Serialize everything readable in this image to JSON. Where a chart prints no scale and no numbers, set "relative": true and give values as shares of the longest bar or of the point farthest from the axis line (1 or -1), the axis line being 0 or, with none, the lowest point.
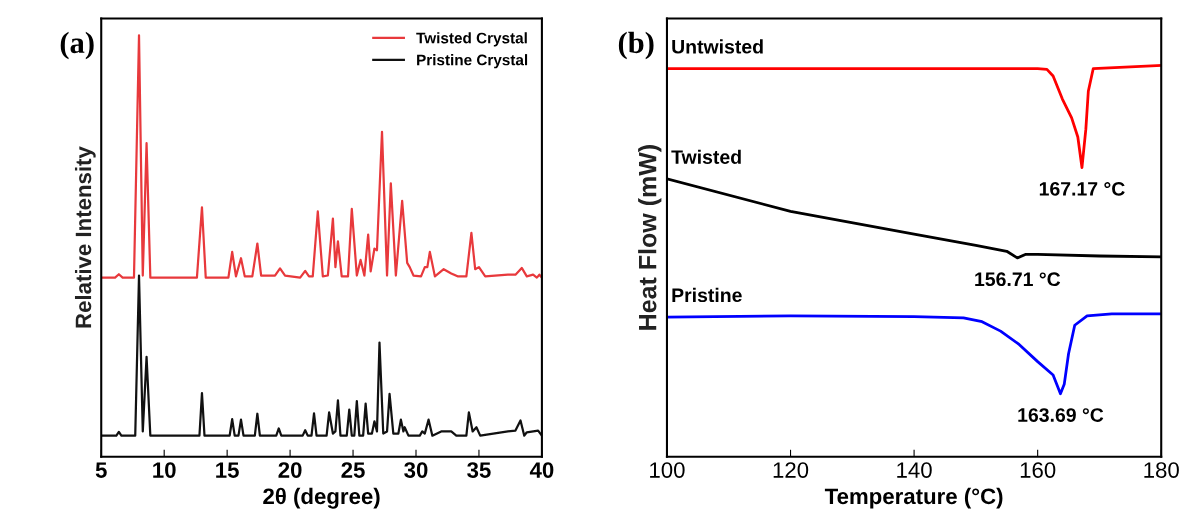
{
  "chart_data": [
    {
      "type": "line",
      "title": "(a)",
      "xlabel": "2θ (degree)",
      "ylabel": "Relative Intensity",
      "relative": true,
      "xlim": [
        5,
        40
      ],
      "xticks": [
        5,
        10,
        15,
        20,
        25,
        30,
        35,
        40
      ],
      "tick_labels": "x",
      "legend": "top right",
      "grid": false,
      "series": [
        {
          "name": "Twisted Crystal",
          "color": "#e8393c",
          "x": [
            5.0,
            6.1,
            6.4,
            6.7,
            7.6,
            8.0,
            8.3,
            8.6,
            8.9,
            12.6,
            13.0,
            13.3,
            15.1,
            15.4,
            15.7,
            16.1,
            16.4,
            17.0,
            17.4,
            17.7,
            18.8,
            19.2,
            19.6,
            20.8,
            21.2,
            21.5,
            21.8,
            22.2,
            22.6,
            23.0,
            23.4,
            23.6,
            23.8,
            24.1,
            24.6,
            24.9,
            25.3,
            25.6,
            25.9,
            26.2,
            26.4,
            26.7,
            26.9,
            27.3,
            27.7,
            28.0,
            28.4,
            28.9,
            29.3,
            29.5,
            29.8,
            30.4,
            30.7,
            30.9,
            31.1,
            31.5,
            32.2,
            32.8,
            33.3,
            34.0,
            34.4,
            34.7,
            35.0,
            35.5,
            37.3,
            37.9,
            38.4,
            38.8,
            39.3,
            39.6,
            39.8,
            40.0
          ],
          "values": [
            0.425,
            0.425,
            0.433,
            0.425,
            0.425,
            1.0,
            0.43,
            0.744,
            0.425,
            0.425,
            0.592,
            0.425,
            0.425,
            0.486,
            0.428,
            0.471,
            0.428,
            0.428,
            0.506,
            0.43,
            0.43,
            0.447,
            0.43,
            0.425,
            0.441,
            0.428,
            0.428,
            0.582,
            0.428,
            0.43,
            0.565,
            0.45,
            0.511,
            0.428,
            0.428,
            0.588,
            0.43,
            0.467,
            0.43,
            0.527,
            0.44,
            0.494,
            0.49,
            0.771,
            0.43,
            0.649,
            0.43,
            0.607,
            0.46,
            0.45,
            0.43,
            0.428,
            0.45,
            0.45,
            0.486,
            0.428,
            0.445,
            0.435,
            0.428,
            0.428,
            0.531,
            0.445,
            0.45,
            0.428,
            0.432,
            0.432,
            0.448,
            0.428,
            0.432,
            0.425,
            0.432,
            0.425
          ]
        },
        {
          "name": "Pristine Crystal",
          "color": "#111111",
          "x": [
            5.0,
            6.2,
            6.4,
            6.6,
            7.7,
            8.0,
            8.3,
            8.6,
            8.9,
            12.8,
            13.0,
            13.2,
            15.2,
            15.4,
            15.6,
            15.9,
            16.1,
            16.3,
            17.2,
            17.4,
            17.6,
            18.9,
            19.1,
            19.3,
            21.0,
            21.2,
            21.4,
            21.7,
            21.9,
            22.1,
            22.9,
            23.1,
            23.4,
            23.6,
            23.8,
            24.0,
            24.5,
            24.7,
            24.9,
            25.1,
            25.3,
            25.5,
            25.8,
            26.0,
            26.2,
            26.5,
            26.7,
            26.9,
            27.1,
            27.4,
            27.7,
            27.9,
            28.2,
            28.6,
            28.8,
            29.0,
            29.1,
            29.4,
            30.3,
            30.5,
            30.7,
            31.0,
            31.3,
            32.0,
            32.8,
            33.2,
            34.0,
            34.2,
            34.5,
            34.8,
            35.1,
            37.3,
            37.9,
            38.3,
            38.6,
            38.8,
            39.7,
            40.0
          ],
          "values": [
            0.05,
            0.05,
            0.059,
            0.05,
            0.05,
            0.43,
            0.06,
            0.237,
            0.05,
            0.05,
            0.151,
            0.05,
            0.05,
            0.089,
            0.05,
            0.05,
            0.088,
            0.05,
            0.05,
            0.102,
            0.05,
            0.05,
            0.067,
            0.05,
            0.05,
            0.063,
            0.05,
            0.05,
            0.103,
            0.05,
            0.05,
            0.105,
            0.055,
            0.06,
            0.134,
            0.05,
            0.05,
            0.112,
            0.05,
            0.05,
            0.132,
            0.05,
            0.05,
            0.126,
            0.055,
            0.055,
            0.084,
            0.06,
            0.271,
            0.055,
            0.06,
            0.149,
            0.055,
            0.055,
            0.088,
            0.06,
            0.07,
            0.05,
            0.05,
            0.06,
            0.055,
            0.088,
            0.05,
            0.06,
            0.06,
            0.05,
            0.05,
            0.105,
            0.06,
            0.07,
            0.05,
            0.06,
            0.062,
            0.086,
            0.05,
            0.058,
            0.062,
            0.05
          ]
        }
      ]
    },
    {
      "type": "line",
      "title": "(b)",
      "xlabel": "Temperature (°C)",
      "ylabel": "Heat Flow (mW)",
      "relative": true,
      "xlim": [
        100,
        180
      ],
      "xticks": [
        100,
        120,
        140,
        160,
        180
      ],
      "tick_labels": "x",
      "legend": false,
      "grid": false,
      "series": [
        {
          "name": "Untwisted",
          "color": "#ff0000",
          "x": [
            100,
            140,
            160,
            161.5,
            162.5,
            164,
            165.5,
            166.5,
            167.17,
            167.8,
            168.2,
            169,
            180
          ],
          "values": [
            0.992,
            0.992,
            0.992,
            0.99,
            0.973,
            0.914,
            0.866,
            0.817,
            0.739,
            0.837,
            0.934,
            0.992,
            1.0
          ]
        },
        {
          "name": "Twisted",
          "color": "#000000",
          "x": [
            100,
            120,
            140,
            150,
            155,
            156.71,
            158,
            160,
            170,
            180
          ],
          "values": [
            0.71,
            0.627,
            0.569,
            0.54,
            0.525,
            0.508,
            0.517,
            0.517,
            0.513,
            0.511
          ]
        },
        {
          "name": "Pristine",
          "color": "#0000ff",
          "x": [
            100,
            120,
            140,
            148,
            151,
            154,
            157,
            160,
            162.5,
            163.69,
            164.3,
            165,
            166,
            168,
            172,
            180
          ],
          "values": [
            0.357,
            0.36,
            0.358,
            0.355,
            0.345,
            0.321,
            0.287,
            0.243,
            0.209,
            0.161,
            0.185,
            0.263,
            0.336,
            0.36,
            0.365,
            0.365
          ]
        }
      ],
      "annotations": [
        {
          "text": "167.17 °C",
          "x": 167.17,
          "y": 0.739
        },
        {
          "text": "156.71 °C",
          "x": 156.71,
          "y": 0.508
        },
        {
          "text": "163.69 °C",
          "x": 163.69,
          "y": 0.161
        }
      ]
    }
  ]
}
